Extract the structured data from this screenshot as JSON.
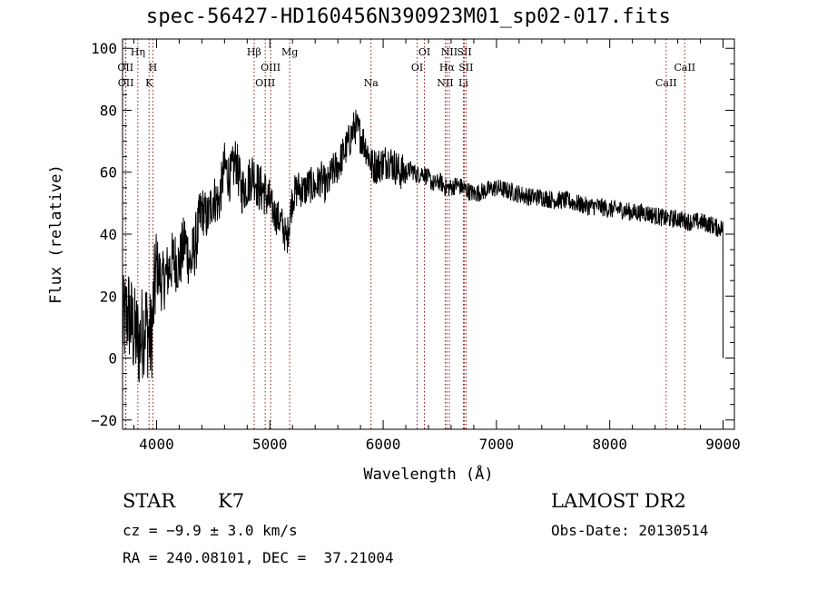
{
  "chart_data": {
    "type": "line",
    "title": "spec-56427-HD160456N390923M01_sp02-017.fits",
    "xlabel": "Wavelength (Å)",
    "ylabel": "Flux (relative)",
    "xlim": [
      3700,
      9100
    ],
    "ylim": [
      -23,
      103
    ],
    "x_ticks": [
      4000,
      5000,
      6000,
      7000,
      8000,
      9000
    ],
    "x_tick_labels": [
      "4000",
      "5000",
      "6000",
      "7000",
      "8000",
      "9000"
    ],
    "y_ticks": [
      -20,
      0,
      20,
      40,
      60,
      80,
      100
    ],
    "y_tick_labels": [
      "−20",
      "0",
      "20",
      "40",
      "60",
      "80",
      "100"
    ],
    "grid": false,
    "series": [
      {
        "name": "flux",
        "x": [
          3700,
          3750,
          3800,
          3850,
          3900,
          3950,
          4000,
          4050,
          4100,
          4150,
          4200,
          4250,
          4300,
          4350,
          4400,
          4450,
          4500,
          4550,
          4600,
          4650,
          4700,
          4750,
          4800,
          4850,
          4900,
          4950,
          5000,
          5050,
          5100,
          5150,
          5200,
          5250,
          5300,
          5350,
          5400,
          5450,
          5500,
          5550,
          5600,
          5650,
          5700,
          5750,
          5800,
          5850,
          5900,
          5950,
          6000,
          6050,
          6100,
          6150,
          6200,
          6250,
          6300,
          6350,
          6400,
          6450,
          6500,
          6550,
          6600,
          6650,
          6700,
          6750,
          6800,
          6900,
          7000,
          7100,
          7200,
          7300,
          7400,
          7500,
          7600,
          7700,
          7800,
          7900,
          8000,
          8100,
          8200,
          8300,
          8400,
          8500,
          8600,
          8700,
          8800,
          8900,
          8950,
          9000
        ],
        "values": [
          10,
          15,
          8,
          5,
          12,
          5,
          30,
          24,
          28,
          32,
          30,
          38,
          30,
          38,
          48,
          45,
          52,
          50,
          62,
          58,
          64,
          54,
          56,
          60,
          55,
          54,
          50,
          46,
          44,
          38,
          52,
          55,
          54,
          56,
          55,
          58,
          55,
          60,
          62,
          66,
          70,
          75,
          72,
          68,
          62,
          62,
          63,
          64,
          62,
          60,
          60,
          61,
          59,
          60,
          58,
          56,
          57,
          55,
          55,
          56,
          55,
          54,
          53,
          54,
          55,
          54,
          53,
          52,
          52,
          51,
          51,
          50,
          49,
          49,
          48,
          48,
          47,
          47,
          46,
          45,
          45,
          44,
          44,
          43,
          42,
          42
        ]
      }
    ],
    "line_markers": [
      {
        "label": "Hη",
        "x": 3835,
        "row": 0
      },
      {
        "label": "OII",
        "x": 3726,
        "row": 1
      },
      {
        "label": "OII",
        "x": 3729,
        "row": 2
      },
      {
        "label": "H",
        "x": 3968,
        "row": 1
      },
      {
        "label": "K",
        "x": 3934,
        "row": 2
      },
      {
        "label": "Hβ",
        "x": 4861,
        "row": 0
      },
      {
        "label": "OIII",
        "x": 4959,
        "row": 2
      },
      {
        "label": "OIII",
        "x": 5007,
        "row": 1
      },
      {
        "label": "Mg",
        "x": 5175,
        "row": 0
      },
      {
        "label": "Na",
        "x": 5893,
        "row": 2
      },
      {
        "label": "OI",
        "x": 6300,
        "row": 1
      },
      {
        "label": "OI",
        "x": 6364,
        "row": 0
      },
      {
        "label": "NII",
        "x": 6548,
        "row": 2
      },
      {
        "label": "Hα",
        "x": 6563,
        "row": 1
      },
      {
        "label": "NII",
        "x": 6584,
        "row": 0
      },
      {
        "label": "SII",
        "x": 6717,
        "row": 0
      },
      {
        "label": "SII",
        "x": 6731,
        "row": 1
      },
      {
        "label": "Li",
        "x": 6708,
        "row": 2
      },
      {
        "label": "CaII",
        "x": 8498,
        "row": 2
      },
      {
        "label": "CaII",
        "x": 8662,
        "row": 1
      }
    ],
    "colors": {
      "spectrum": "#000000",
      "marker_line": "#8b1a1a",
      "axes": "#000000"
    }
  },
  "info": {
    "class_label": "STAR",
    "subclass": "K7",
    "cz": "cz = −9.9 ± 3.0 km/s",
    "coords": "RA = 240.08101, DEC =  37.21004",
    "survey": "LAMOST DR2",
    "obs_date": "Obs-Date: 20130514"
  }
}
